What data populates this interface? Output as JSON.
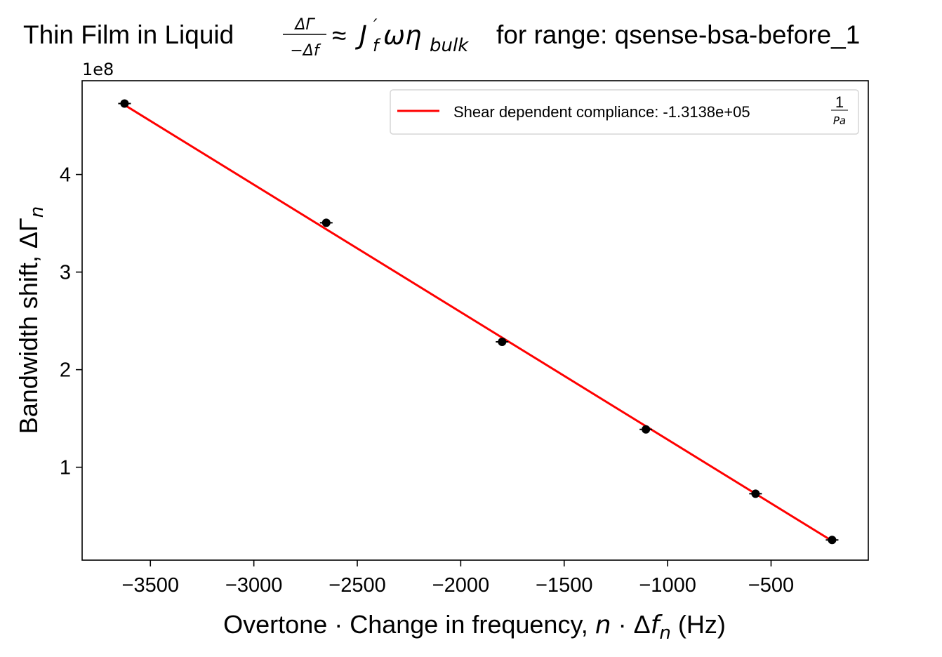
{
  "chart_data": {
    "type": "scatter",
    "title_prefix": "Thin Film in Liquid",
    "title_frac_num": "ΔΓ",
    "title_frac_den": "−Δf",
    "title_approx": "≈",
    "title_J": "J",
    "title_J_prime": "′",
    "title_J_sub": "f",
    "title_omega_eta": "ωη",
    "title_eta_sub": "bulk",
    "title_suffix": "for range: qsense-bsa-before_1",
    "xlabel_text": "Overtone · Change in frequency, ",
    "xlabel_n": "n",
    "xlabel_dot": " · Δ",
    "xlabel_f": "f",
    "xlabel_sub": "n",
    "xlabel_unit": " (Hz)",
    "ylabel_text": "Bandwidth shift, ",
    "ylabel_sym": "ΔΓ",
    "ylabel_sub": "n",
    "y_offset_text": "1e8",
    "xlim": [
      -3830,
      -30
    ],
    "ylim": [
      0.0048,
      0.4961
    ],
    "x_ticks": [
      -3500,
      -3000,
      -2500,
      -2000,
      -1500,
      -1000,
      -500
    ],
    "x_tick_labels": [
      "−3500",
      "−3000",
      "−2500",
      "−2000",
      "−1500",
      "−1000",
      "−500"
    ],
    "y_ticks": [
      0.1,
      0.2,
      0.3,
      0.4
    ],
    "y_tick_labels": [
      "1",
      "2",
      "3",
      "4"
    ],
    "grid": false,
    "legend_position": "upper right",
    "legend_label": "Shear dependent compliance: -1.3138e+05",
    "legend_frac_num": "1",
    "legend_frac_den": "Pa",
    "series": [
      {
        "name": "Shear dependent compliance: -1.3138e+05 1/Pa",
        "kind": "line",
        "color": "#ff0000",
        "x": [
          -3640,
          -205
        ],
        "y": [
          0.4732,
          0.0245
        ]
      },
      {
        "kind": "scatter",
        "color": "#000000",
        "x": [
          -3625,
          -2650,
          -1800,
          -1105,
          -575,
          -205
        ],
        "y": [
          0.4727,
          0.3505,
          0.2285,
          0.1388,
          0.0729,
          0.0255
        ]
      }
    ]
  }
}
